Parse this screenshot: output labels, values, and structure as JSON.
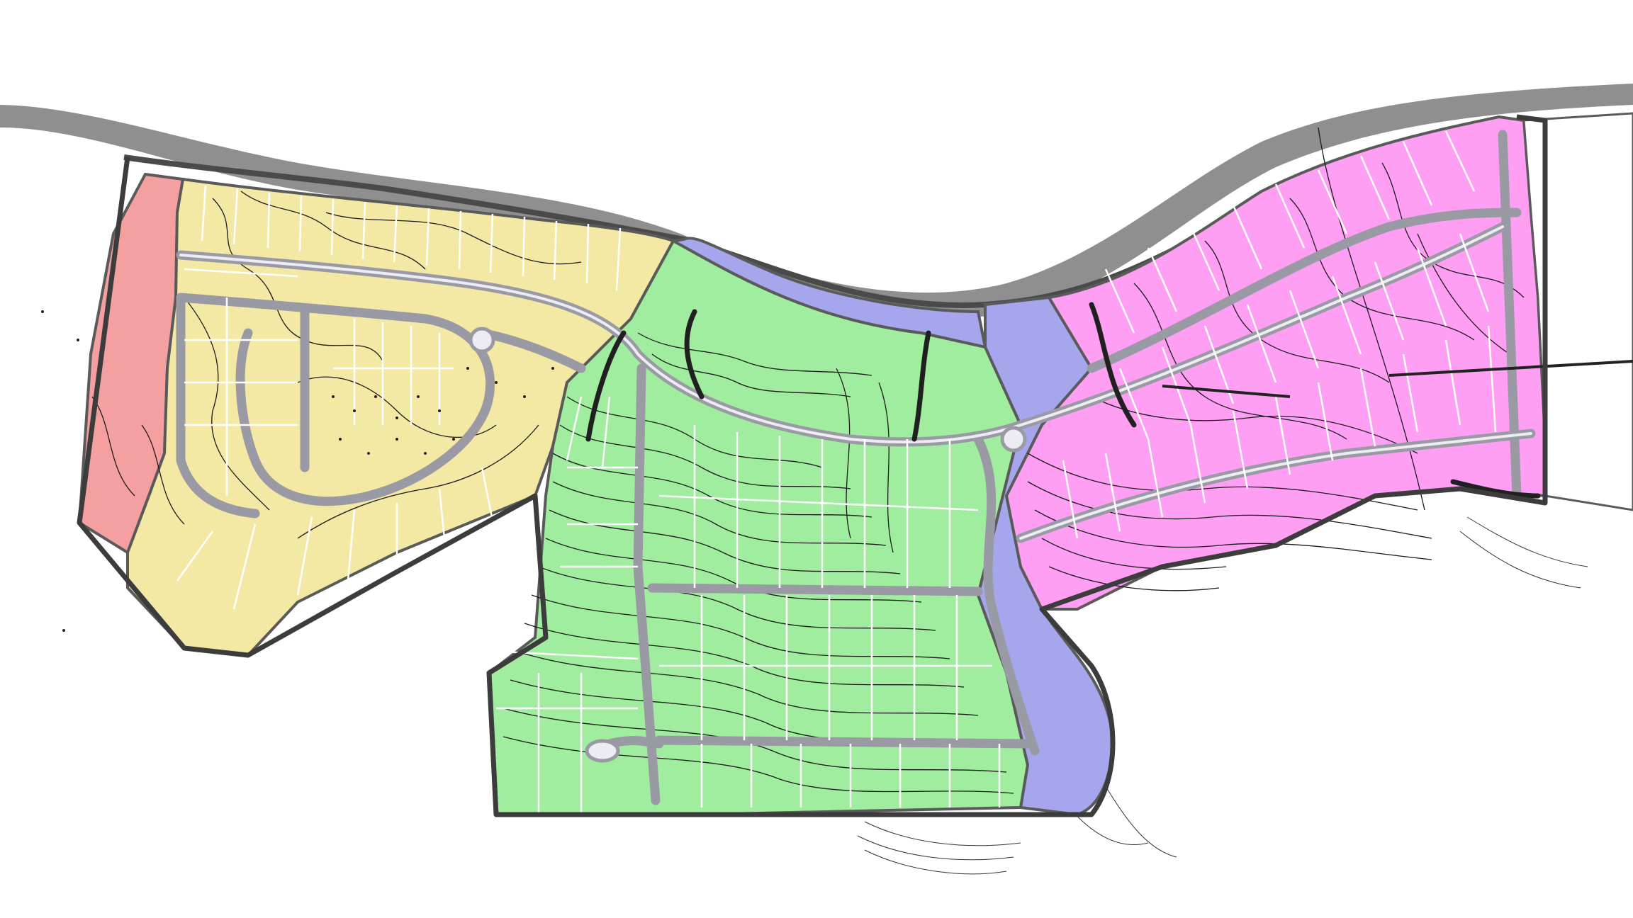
{
  "map": {
    "kind": "subdivision-site-plan",
    "colors": {
      "river": "#8f8f8f",
      "reserve_zone": "#f5a0a0",
      "phase_yellow": "#f3e8a4",
      "phase_green": "#a0eda0",
      "phase_blue_buffer": "#a6a6ec",
      "phase_magenta": "#ff9ff3",
      "road": "#9a9aa4",
      "boundary": "#3c3c3c"
    },
    "zones": [
      {
        "name": "reserve",
        "color_key": "reserve_zone"
      },
      {
        "name": "phase-yellow",
        "color_key": "phase_yellow"
      },
      {
        "name": "phase-green",
        "color_key": "phase_green"
      },
      {
        "name": "drainage-buffer",
        "color_key": "phase_blue_buffer"
      },
      {
        "name": "phase-magenta",
        "color_key": "phase_magenta"
      }
    ],
    "labels": []
  }
}
